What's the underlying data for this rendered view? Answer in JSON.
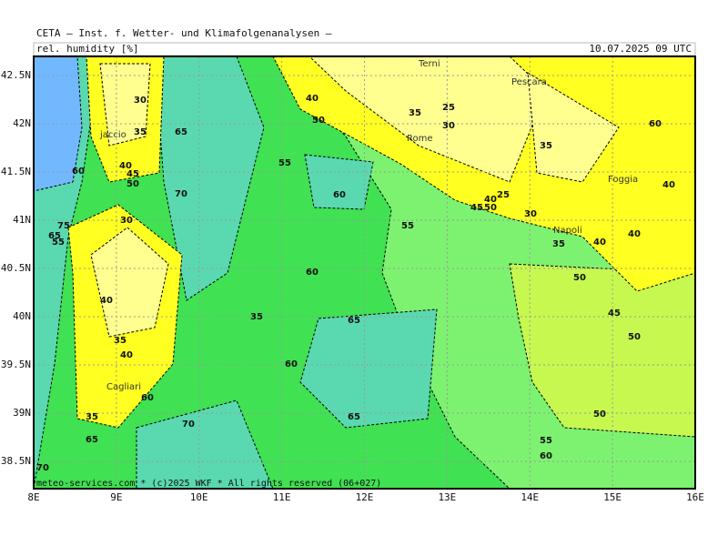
{
  "header": {
    "title": "CETA — Inst. f. Wetter- und Klimafolgenanalysen —",
    "field": "rel. humidity [%]",
    "valid": "10.07.2025 09 UTC"
  },
  "map": {
    "lon_ticks": [
      {
        "value": 8,
        "label": "8E"
      },
      {
        "value": 9,
        "label": "9E"
      },
      {
        "value": 10,
        "label": "10E"
      },
      {
        "value": 11,
        "label": "11E"
      },
      {
        "value": 12,
        "label": "12E"
      },
      {
        "value": 13,
        "label": "13E"
      },
      {
        "value": 14,
        "label": "14E"
      },
      {
        "value": 15,
        "label": "15E"
      },
      {
        "value": 16,
        "label": "16E"
      }
    ],
    "lat_ticks": [
      {
        "value": 42.5,
        "label": "42.5N"
      },
      {
        "value": 42,
        "label": "42N"
      },
      {
        "value": 41.5,
        "label": "41.5N"
      },
      {
        "value": 41,
        "label": "41N"
      },
      {
        "value": 40.5,
        "label": "40.5N"
      },
      {
        "value": 40,
        "label": "40N"
      },
      {
        "value": 39.5,
        "label": "39.5N"
      },
      {
        "value": 39,
        "label": "39N"
      },
      {
        "value": 38.5,
        "label": "38.5N"
      }
    ],
    "cities": [
      "Terni",
      "Pescara",
      "Rome",
      "jaccio",
      "Foggia",
      "Napoli",
      "Cagliari"
    ],
    "contour_labels": [
      30,
      35,
      40,
      45,
      50,
      60,
      30,
      65,
      70,
      40,
      50,
      55,
      60,
      35,
      25,
      30,
      35,
      60,
      40,
      25,
      40,
      45,
      50,
      30,
      55,
      35,
      40,
      40,
      50,
      60,
      35,
      65,
      45,
      50,
      60,
      65,
      50,
      55,
      60,
      70,
      65,
      70,
      40,
      35,
      40,
      60,
      35,
      75,
      65,
      55
    ]
  },
  "footer": "meteo-services.com * (c)2025 WKF * All rights reserved (06+027)"
}
